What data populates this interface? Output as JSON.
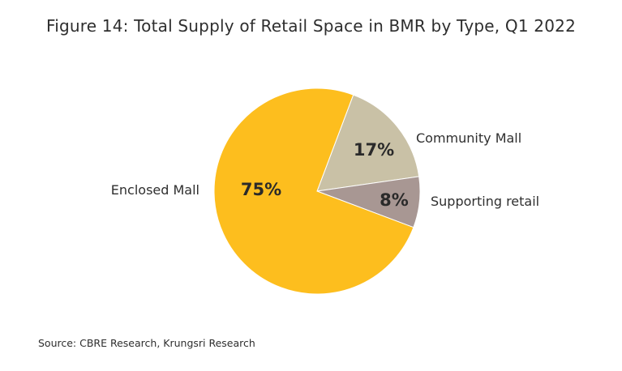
{
  "title": "Figure 14: Total Supply of Retail Space in BMR by Type, Q1 2022",
  "source": "Source: CBRE Research, Krungsri Research",
  "chart_data": {
    "type": "pie",
    "title": "Figure 14: Total Supply of Retail Space in BMR by Type, Q1 2022",
    "slices": [
      {
        "label": "Community Mall",
        "value": 17,
        "pct_label": "17%",
        "color": "#c9c1a6"
      },
      {
        "label": "Supporting retail",
        "value": 8,
        "pct_label": "8%",
        "color": "#a89793"
      },
      {
        "label": "Enclosed Mall",
        "value": 75,
        "pct_label": "75%",
        "color": "#fdbe1e"
      }
    ]
  }
}
